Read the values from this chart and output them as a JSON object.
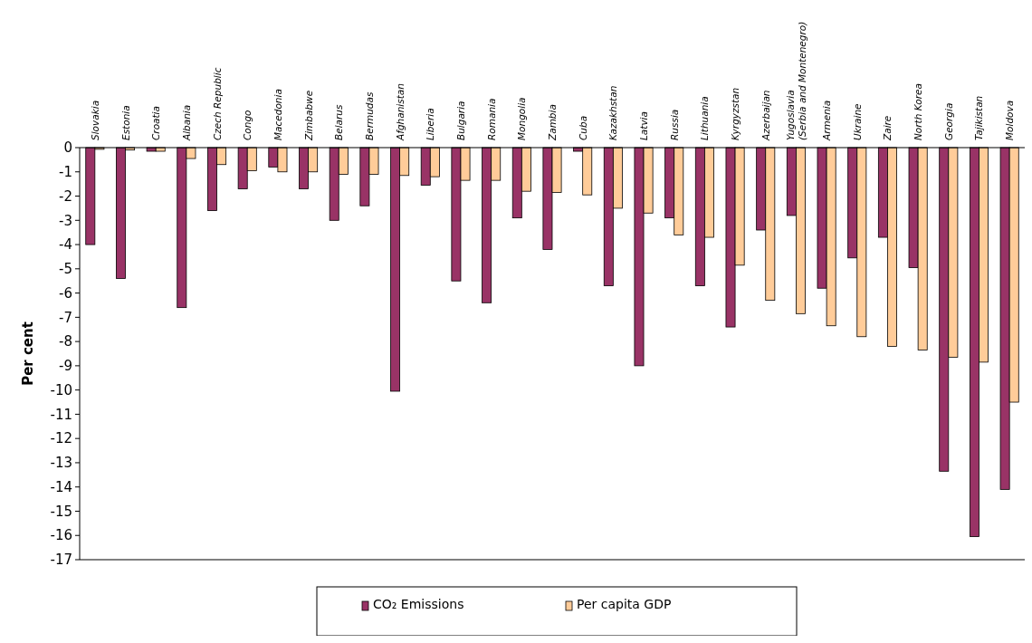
{
  "chart_data": {
    "type": "bar",
    "ylabel": "Per cent",
    "categories": [
      "Slovakia",
      "Estonia",
      "Croatia",
      "Albania",
      "Czech Republic",
      "Congo",
      "Macedonia",
      "Zimbabwe",
      "Belarus",
      "Bermudas",
      "Afghanistan",
      "Liberia",
      "Bulgaria",
      "Romania",
      "Mongolia",
      "Zambia",
      "Cuba",
      "Kazakhstan",
      "Latvia",
      "Russia",
      "Lithuania",
      "Kyrgyzstan",
      "Azerbaijan",
      "Yugoslavia\n(Serbia and Montenegro)",
      "Armenia",
      "Ukraine",
      "Zaire",
      "North Korea",
      "Georgia",
      "Tajikistan",
      "Moldova"
    ],
    "series": [
      {
        "name": "CO₂ Emissions",
        "color": "#993366",
        "values": [
          -4.0,
          -5.4,
          -0.15,
          -6.6,
          -2.6,
          -1.7,
          -0.8,
          -1.7,
          -3.0,
          -2.4,
          -10.05,
          -1.55,
          -5.5,
          -6.4,
          -2.9,
          -4.2,
          -0.15,
          -5.7,
          -9.0,
          -2.9,
          -5.7,
          -7.4,
          -3.4,
          -2.8,
          -5.8,
          -4.55,
          -3.7,
          -4.95,
          -13.35,
          -16.05,
          -14.1
        ]
      },
      {
        "name": "Per capita GDP",
        "color": "#ffcc99",
        "values": [
          -0.07,
          -0.1,
          -0.15,
          -0.45,
          -0.7,
          -0.95,
          -1.0,
          -1.0,
          -1.1,
          -1.1,
          -1.15,
          -1.2,
          -1.35,
          -1.35,
          -1.8,
          -1.85,
          -1.95,
          -2.5,
          -2.7,
          -3.6,
          -3.7,
          -4.85,
          -6.3,
          -6.85,
          -7.35,
          -7.8,
          -8.2,
          -8.35,
          -8.65,
          -8.85,
          -10.5
        ]
      }
    ],
    "ylim": [
      -17,
      0
    ],
    "yticks": [
      0,
      -1,
      -2,
      -3,
      -4,
      -5,
      -6,
      -7,
      -8,
      -9,
      -10,
      -11,
      -12,
      -13,
      -14,
      -15,
      -16,
      -17
    ],
    "grid": false,
    "legend": "bottom"
  }
}
